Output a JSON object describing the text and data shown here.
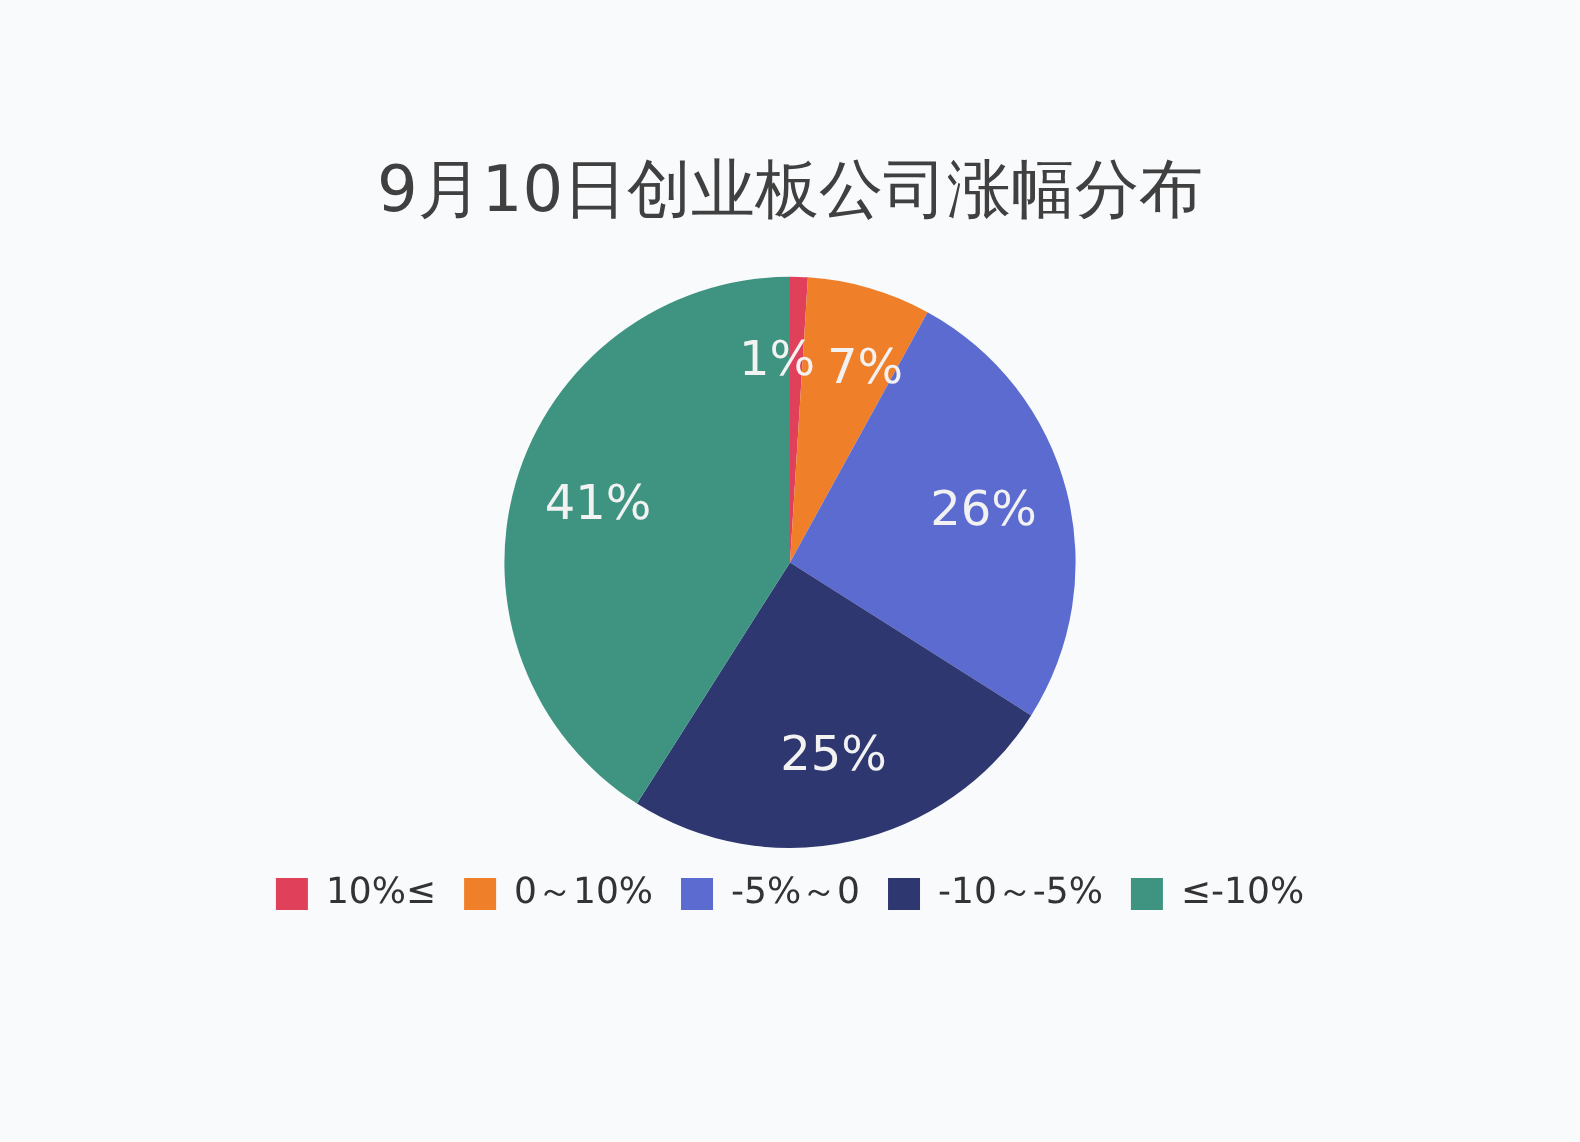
{
  "chart_data": {
    "type": "pie",
    "title": "9月10日创业板公司涨幅分布",
    "categories": [
      "10%≤",
      "0～10%",
      "-5%～0",
      "-10～-5%",
      "≤-10%"
    ],
    "values": [
      1,
      7,
      26,
      25,
      41
    ],
    "value_labels": [
      "1%",
      "7%",
      "26%",
      "25%",
      "41%"
    ],
    "colors": [
      "#e0405a",
      "#f07f2a",
      "#5b6bd0",
      "#2e3770",
      "#3e9480"
    ],
    "legend": "bottom"
  }
}
